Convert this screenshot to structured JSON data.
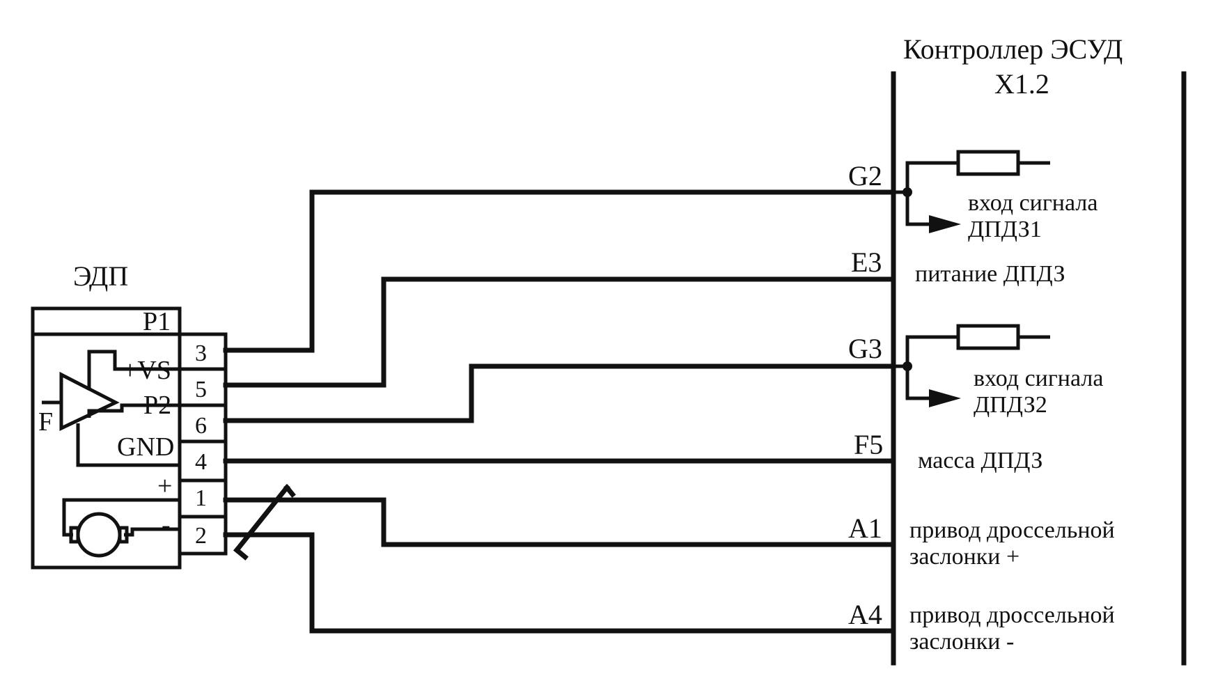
{
  "controller": {
    "title": "Контроллер ЭСУД",
    "connector": "X1.2"
  },
  "module": {
    "title": "ЭДП",
    "amp_input": "F",
    "labels": {
      "p1": "P1",
      "vs": "+VS",
      "p2": "P2",
      "gnd": "GND",
      "plus": "+",
      "minus": "-"
    },
    "pins": {
      "p3": "3",
      "p5": "5",
      "p6": "6",
      "p4": "4",
      "p1": "1",
      "p2": "2"
    }
  },
  "terminals": {
    "g2": "G2",
    "e3": "E3",
    "g3": "G3",
    "f5": "F5",
    "a1": "A1",
    "a4": "A4"
  },
  "signals": {
    "g2_line1": "вход сигнала",
    "g2_line2": "ДПДЗ1",
    "e3": "питание ДПДЗ",
    "g3_line1": "вход сигнала",
    "g3_line2": "ДПДЗ2",
    "f5": "масса ДПДЗ",
    "a1_line1": "привод дроссельной",
    "a1_line2": "заслонки +",
    "a4_line1": "привод дроссельной",
    "a4_line2": "заслонки -"
  }
}
